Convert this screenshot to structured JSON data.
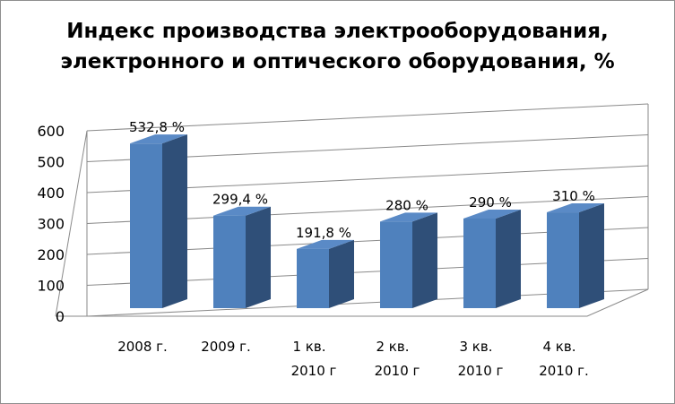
{
  "chart_data": {
    "type": "bar",
    "title_lines": [
      "Индекс производства электрооборудования,",
      "электронного и оптического оборудования, %"
    ],
    "categories": [
      [
        "2008 г."
      ],
      [
        "2009 г."
      ],
      [
        "1 кв.",
        "2010 г"
      ],
      [
        "2 кв.",
        "2010 г"
      ],
      [
        "3 кв.",
        "2010 г"
      ],
      [
        "4 кв.",
        "2010 г."
      ]
    ],
    "values": [
      532.8,
      299.4,
      191.8,
      280,
      290,
      310
    ],
    "data_labels": [
      "532,8 %",
      "299,4 %",
      "191,8 %",
      "280 %",
      "290 %",
      "310 %"
    ],
    "y_ticks": [
      "0",
      "100",
      "200",
      "300",
      "400",
      "500",
      "600"
    ],
    "ylim": [
      0,
      600
    ],
    "grid": true,
    "style": "3d-column",
    "colors": {
      "front": "#4f81bd",
      "side": "#2f4f78",
      "top": "#5a8ac6"
    }
  }
}
